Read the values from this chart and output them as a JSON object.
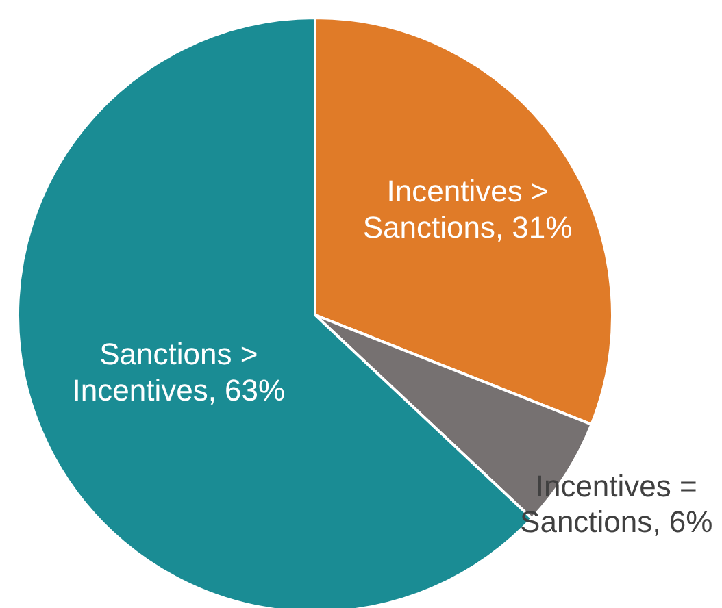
{
  "chart_data": {
    "type": "pie",
    "categories": [
      "Incentives > Sanctions",
      "Incentives = Sanctions",
      "Sanctions > Incentives"
    ],
    "values": [
      31,
      6,
      63
    ],
    "value_labels": [
      "31%",
      "6%",
      "63%"
    ],
    "colors": [
      "#e07b28",
      "#767171",
      "#1a8c94"
    ]
  }
}
